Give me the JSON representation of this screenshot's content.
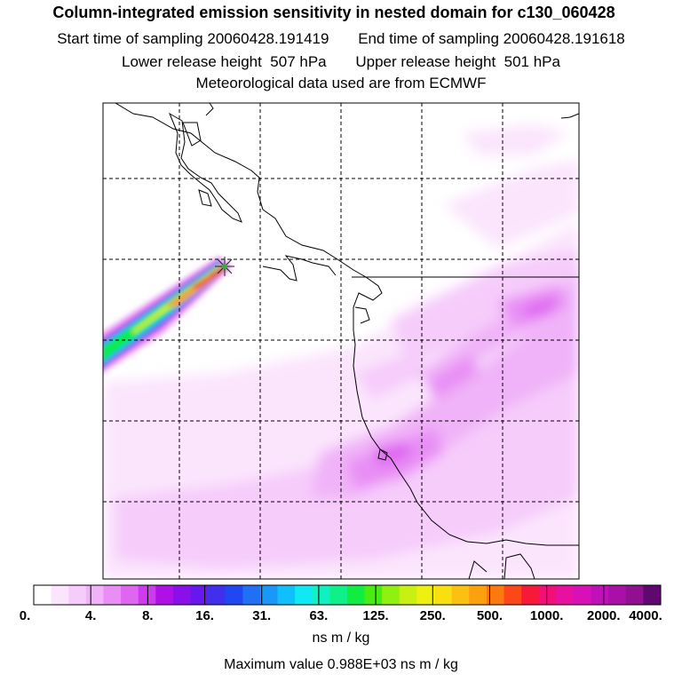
{
  "title": {
    "main": "Column-integrated emission sensitivity in nested domain for c130_060428",
    "start_label": "Start time of sampling",
    "start_value": "20060428.191419",
    "end_label": "End time of sampling",
    "end_value": "20060428.191618",
    "lower_label": "Lower release height",
    "lower_value": "507 hPa",
    "upper_label": "Upper release height",
    "upper_value": "501 hPa",
    "met": "Meteorological data used are from ECMWF"
  },
  "colorbar": {
    "ticks": [
      "0.",
      "4.",
      "8.",
      "16.",
      "31.",
      "63.",
      "125.",
      "250.",
      "500.",
      "1000.",
      "2000.",
      "4000."
    ],
    "colors": [
      "#ffffff",
      "#fbe5fd",
      "#f6ccfb",
      "#f0b2f8",
      "#e88ef5",
      "#de66f1",
      "#cc3cec",
      "#b010e8",
      "#8a10ea",
      "#6818ec",
      "#4030ee",
      "#2048f2",
      "#2070f6",
      "#1a98fa",
      "#10c0fc",
      "#10e8f4",
      "#10f0c0",
      "#10f088",
      "#10ec40",
      "#48ec10",
      "#90f010",
      "#c8f010",
      "#f0f010",
      "#f8e010",
      "#fcc010",
      "#fca010",
      "#fc7810",
      "#fc4818",
      "#f81838",
      "#f01078",
      "#e810a0",
      "#d810b8",
      "#c010b8",
      "#a810a8",
      "#901090",
      "#600870"
    ],
    "units": "ns m / kg"
  },
  "max_value": "Maximum value  0.988E+03 ns m / kg",
  "map": {
    "release_marker": "release-point-star",
    "plume_colors": [
      "#f0b2f8",
      "#de66f1",
      "#2048f2",
      "#10c0fc",
      "#10ec40",
      "#f0f010",
      "#fca010",
      "#fc4818",
      "#e82020"
    ],
    "sensitivity_colors": [
      "#fbe5fd",
      "#f6ccfb",
      "#f0b2f8",
      "#e88ef5",
      "#de66f1"
    ]
  }
}
